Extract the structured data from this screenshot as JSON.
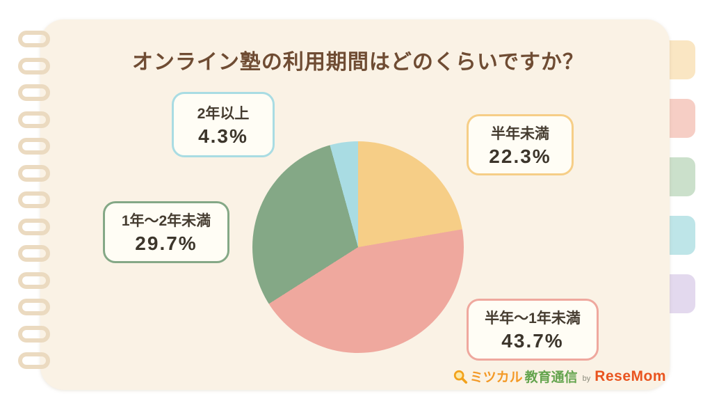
{
  "page": {
    "title": "オンライン塾の利用期間はどのくらいですか？"
  },
  "chart_data": {
    "type": "pie",
    "title": "オンライン塾の利用期間はどのくらいですか？",
    "unit": "%",
    "direction": "clockwise",
    "start_angle_deg": 0,
    "legend": "none",
    "segments": [
      {
        "label": "半年未満",
        "value": 22.3,
        "display": "22.3%",
        "color": "#F6CE87"
      },
      {
        "label": "半年～1年未満",
        "value": 43.7,
        "display": "43.7%",
        "color": "#EFA89E"
      },
      {
        "label": "1年～2年未満",
        "value": 29.7,
        "display": "29.7%",
        "color": "#84A886"
      },
      {
        "label": "2年以上",
        "value": 4.3,
        "display": "4.3%",
        "color": "#A9DCE3"
      }
    ]
  },
  "footer": {
    "brand_1": "ミツカル",
    "brand_2": "教育通信",
    "by": "by",
    "brand_3": "ReseMom"
  },
  "colors": {
    "page_bg": "#FAF2E5",
    "title_text": "#6F4C33",
    "callout_text": "#453C30",
    "ring": "#EBDAC0",
    "tabs": [
      "#FAE6C3",
      "#F6CEC5",
      "#CBE0CB",
      "#BEE5E8",
      "#E3D9EE"
    ]
  }
}
